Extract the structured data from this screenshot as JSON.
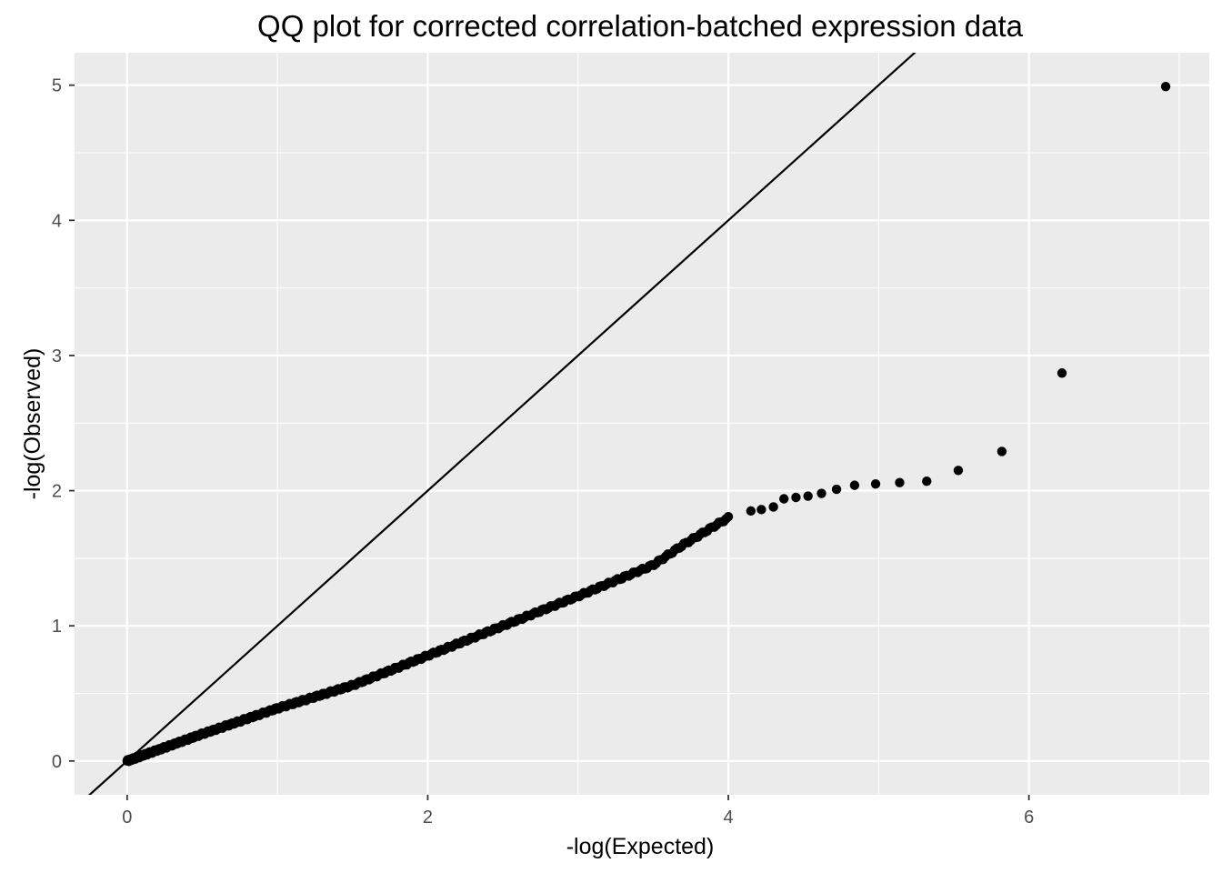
{
  "chart_data": {
    "type": "scatter",
    "title": "QQ plot for corrected correlation-batched expression data",
    "xlabel": "-log(Expected)",
    "ylabel": "-log(Observed)",
    "xlim": [
      -0.35,
      7.2
    ],
    "ylim": [
      -0.25,
      5.24
    ],
    "x_ticks": [
      0,
      2,
      4,
      6
    ],
    "x_tick_labels": [
      "0",
      "2",
      "4",
      "6"
    ],
    "y_ticks": [
      0,
      1,
      2,
      3,
      4,
      5
    ],
    "y_tick_labels": [
      "0",
      "1",
      "2",
      "3",
      "4",
      "5"
    ],
    "x_minor_ticks": [
      1,
      3,
      5,
      7
    ],
    "y_minor_ticks": [
      0.5,
      1.5,
      2.5,
      3.5,
      4.5
    ],
    "grid": true,
    "reference_line": {
      "intercept": 0,
      "slope": 1
    },
    "background_color": "#ebebeb",
    "grid_color": "#ffffff",
    "point_color": "#000000",
    "curve_anchors": [
      [
        0.0,
        0.0
      ],
      [
        0.5,
        0.2
      ],
      [
        1.0,
        0.39
      ],
      [
        1.5,
        0.56
      ],
      [
        2.0,
        0.78
      ],
      [
        2.5,
        1.0
      ],
      [
        3.0,
        1.22
      ],
      [
        3.5,
        1.45
      ],
      [
        3.7,
        1.6
      ],
      [
        4.0,
        1.8
      ]
    ],
    "tail_points": [
      [
        4.15,
        1.85
      ],
      [
        4.22,
        1.86
      ],
      [
        4.3,
        1.88
      ],
      [
        4.37,
        1.94
      ],
      [
        4.45,
        1.95
      ],
      [
        4.53,
        1.96
      ],
      [
        4.62,
        1.98
      ],
      [
        4.72,
        2.01
      ],
      [
        4.84,
        2.04
      ],
      [
        4.98,
        2.05
      ],
      [
        5.14,
        2.06
      ],
      [
        5.32,
        2.07
      ],
      [
        5.53,
        2.15
      ],
      [
        5.82,
        2.29
      ],
      [
        6.22,
        2.87
      ],
      [
        6.91,
        4.99
      ]
    ],
    "dense_point_count": 320
  }
}
